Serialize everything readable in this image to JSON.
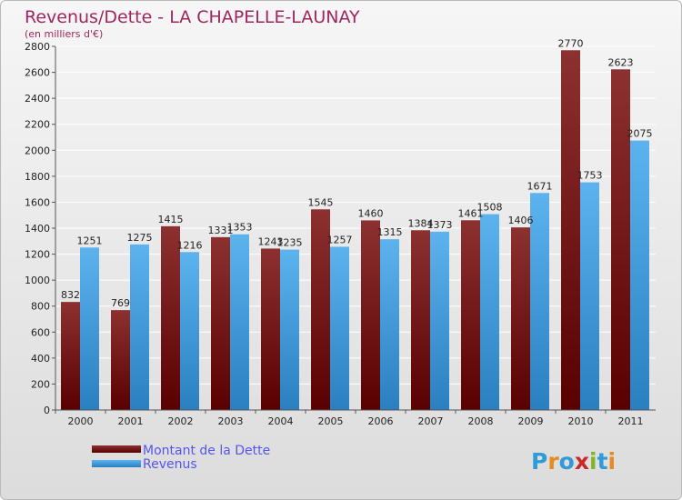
{
  "chart_data": {
    "type": "bar",
    "title": "Revenus/Dette - LA CHAPELLE-LAUNAY",
    "subtitle": "(en milliers d'€)",
    "categories": [
      "2000",
      "2001",
      "2002",
      "2003",
      "2004",
      "2005",
      "2006",
      "2007",
      "2008",
      "2009",
      "2010",
      "2011"
    ],
    "series": [
      {
        "name": "Montant de la Dette",
        "color": "#7a1a1a",
        "values": [
          832,
          769,
          1415,
          1331,
          1243,
          1545,
          1460,
          1384,
          1461,
          1406,
          2770,
          2623
        ]
      },
      {
        "name": "Revenus",
        "color": "#4aa3e3",
        "values": [
          1251,
          1275,
          1216,
          1353,
          1235,
          1257,
          1315,
          1373,
          1508,
          1671,
          1753,
          2075
        ]
      }
    ],
    "ylim": [
      0,
      2800
    ],
    "yticks": [
      0,
      200,
      400,
      600,
      800,
      1000,
      1200,
      1400,
      1600,
      1800,
      2000,
      2200,
      2400,
      2600,
      2800
    ],
    "grid": true,
    "legend_position": "bottom-left"
  },
  "logo": {
    "text": "Proxiti",
    "letters": [
      "P",
      "r",
      "o",
      "x",
      "i",
      "t",
      "i"
    ]
  }
}
